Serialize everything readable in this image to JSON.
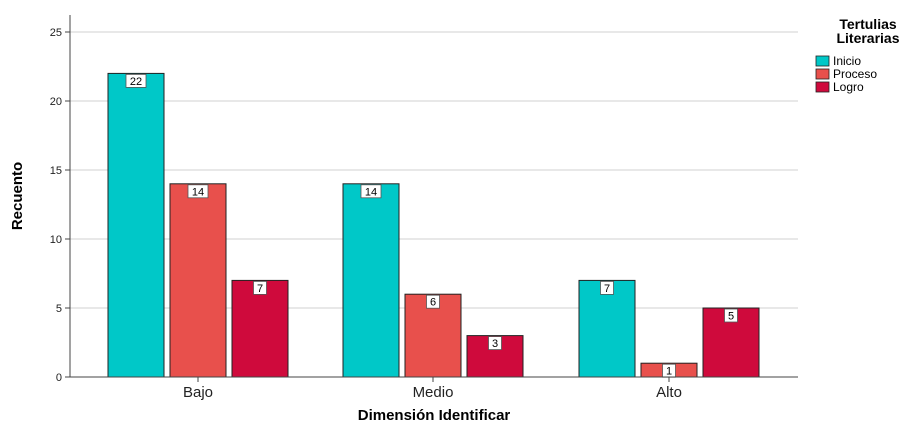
{
  "chart_data": {
    "type": "bar",
    "categories": [
      "Bajo",
      "Medio",
      "Alto"
    ],
    "series": [
      {
        "name": "Inicio",
        "values": [
          22,
          14,
          7
        ],
        "color": "#00c8c8"
      },
      {
        "name": "Proceso",
        "values": [
          14,
          6,
          1
        ],
        "color": "#e8504c"
      },
      {
        "name": "Logro",
        "values": [
          7,
          3,
          5
        ],
        "color": "#cf0a3c"
      }
    ],
    "xlabel": "Dimensión Identificar",
    "ylabel": "Recuento",
    "ylim": [
      0,
      25
    ],
    "yticks": [
      0,
      5,
      10,
      15,
      20,
      25
    ],
    "grid": true,
    "legend": {
      "title_lines": [
        "Tertulias",
        "Literarias"
      ],
      "placement": "top-right"
    }
  }
}
